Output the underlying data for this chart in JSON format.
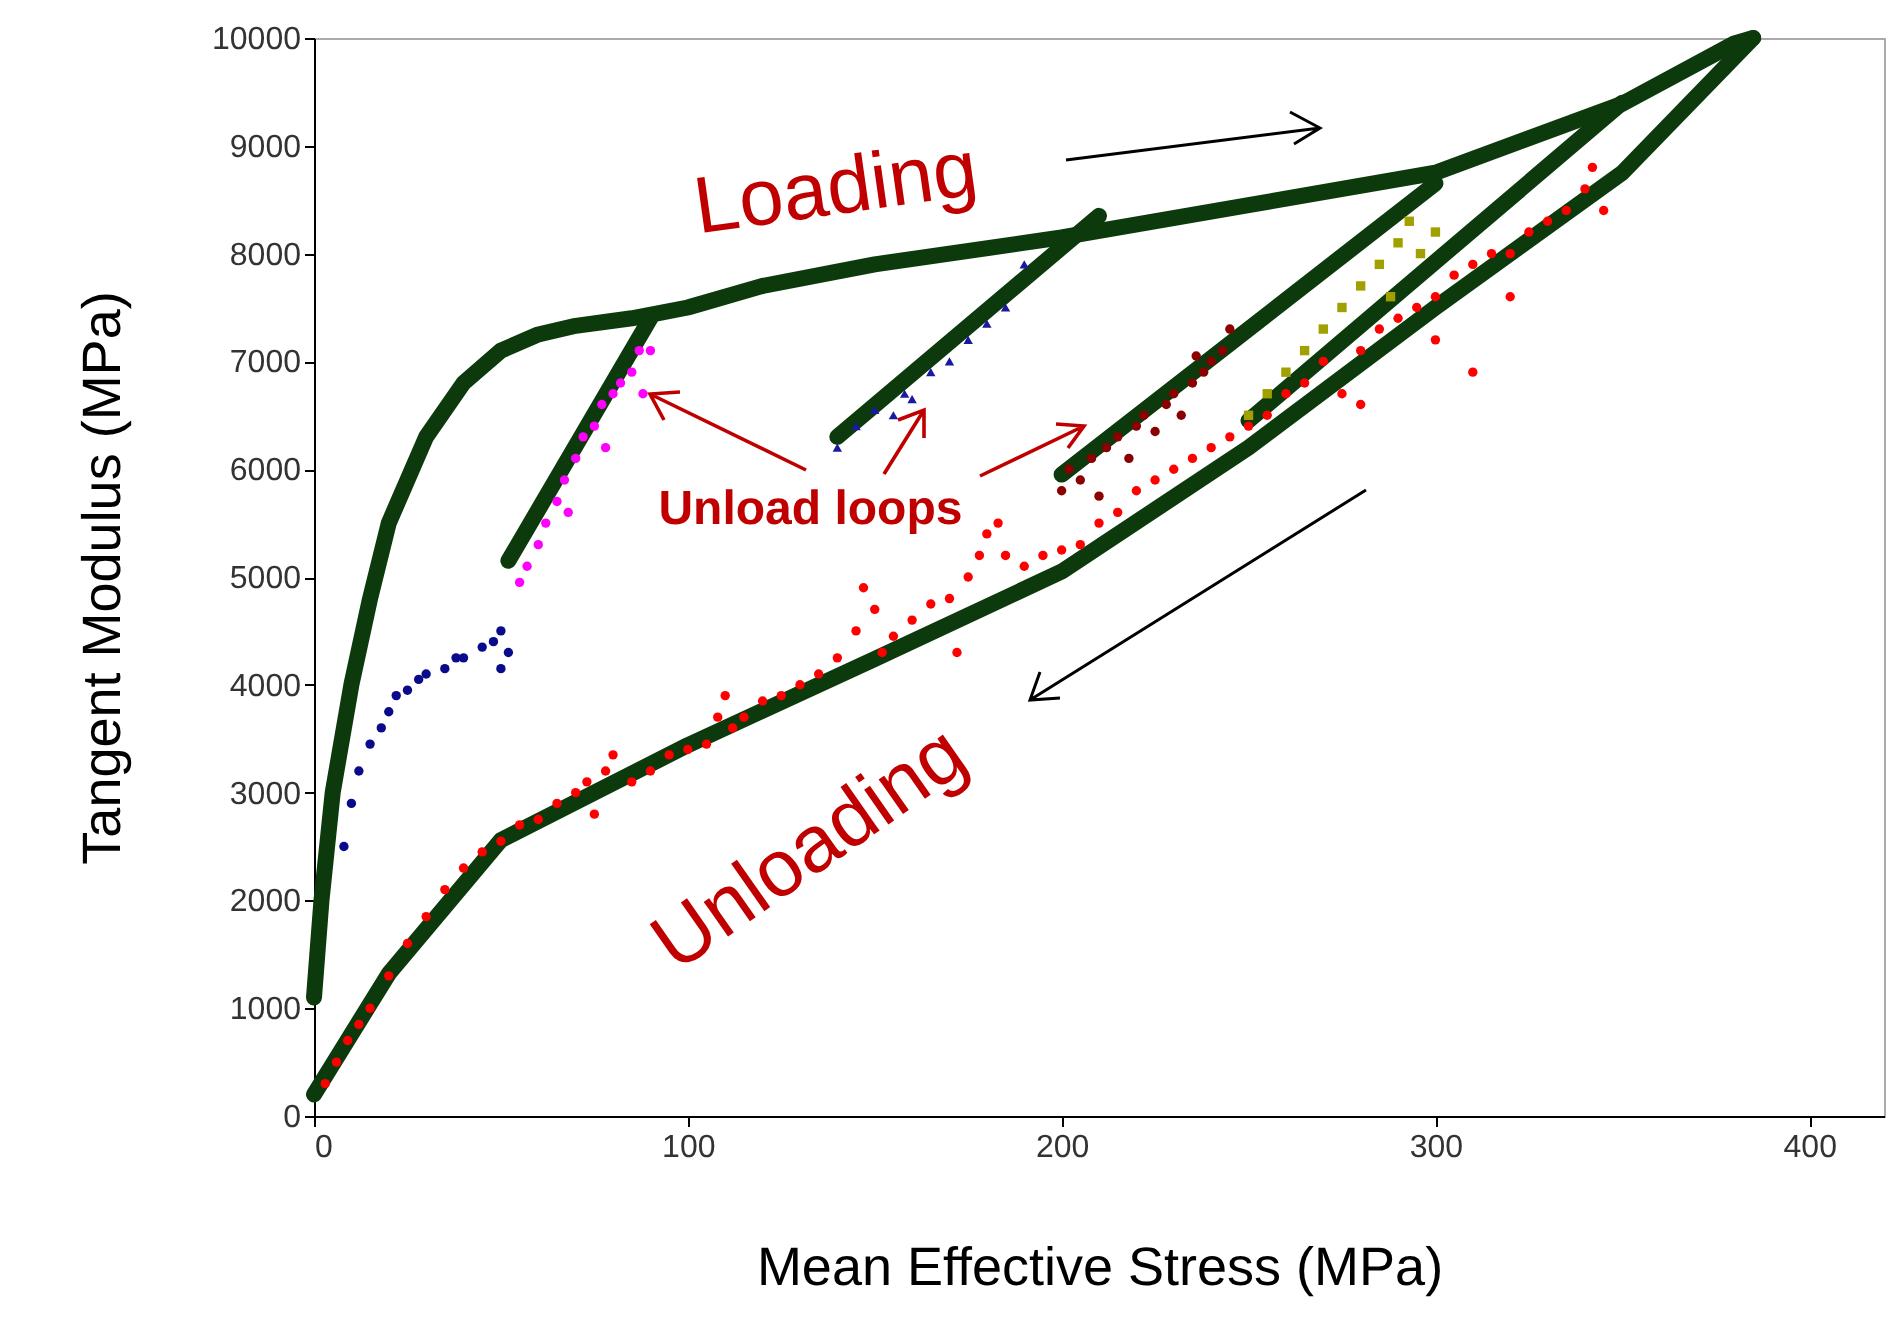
{
  "chart_data": {
    "type": "scatter",
    "xlabel": "Mean Effective Stress (MPa)",
    "ylabel": "Tangent Modulus (MPa)",
    "xlim": [
      0,
      420
    ],
    "ylim": [
      0,
      10000
    ],
    "xticks": [
      0,
      100,
      200,
      300,
      400
    ],
    "yticks": [
      0,
      1000,
      2000,
      3000,
      4000,
      5000,
      6000,
      7000,
      8000,
      9000,
      10000
    ],
    "grid": false,
    "annotations": [
      "Loading",
      {
        "text": "Unload loops",
        "x": 90,
        "y": 6700
      },
      "Unloading"
    ],
    "series": [
      {
        "marker": "circle",
        "color": "#ff0000",
        "x": [
          3,
          6,
          9,
          12,
          15,
          20,
          25,
          30,
          35,
          40,
          45,
          50,
          55,
          60,
          65,
          70,
          73,
          75,
          78,
          80,
          85,
          90,
          95,
          100,
          105,
          108,
          110,
          112,
          115,
          120,
          125,
          130,
          135,
          140,
          145,
          147,
          150,
          152,
          155,
          160,
          165,
          170,
          172,
          175,
          178,
          180,
          183,
          185,
          190,
          195,
          200,
          205,
          210,
          215,
          220,
          225,
          230,
          235,
          240,
          245,
          250,
          255,
          260,
          265,
          270,
          275,
          280,
          285,
          290,
          295,
          300,
          305,
          310,
          315,
          320,
          325,
          330,
          335,
          340,
          342,
          345,
          300,
          280,
          320,
          310
        ],
        "values": [
          300,
          500,
          700,
          850,
          1000,
          1300,
          1600,
          1850,
          2100,
          2300,
          2450,
          2550,
          2700,
          2750,
          2900,
          3000,
          3100,
          2800,
          3200,
          3350,
          3100,
          3200,
          3350,
          3400,
          3450,
          3700,
          3900,
          3600,
          3700,
          3850,
          3900,
          4000,
          4100,
          4250,
          4500,
          4900,
          4700,
          4300,
          4450,
          4600,
          4750,
          4800,
          4300,
          5000,
          5200,
          5400,
          5500,
          5200,
          5100,
          5200,
          5250,
          5300,
          5500,
          5600,
          5800,
          5900,
          6000,
          6100,
          6200,
          6300,
          6400,
          6500,
          6700,
          6800,
          7000,
          6700,
          7100,
          7300,
          7400,
          7500,
          7600,
          7800,
          7900,
          8000,
          8000,
          8200,
          8300,
          8400,
          8600,
          8800,
          8400,
          7200,
          6600,
          7600,
          6900
        ]
      },
      {
        "marker": "circle",
        "color": "#0a0a8c",
        "x": [
          8,
          10,
          12,
          15,
          18,
          20,
          22,
          25,
          28,
          30,
          35,
          38,
          40,
          45,
          48,
          50,
          52,
          50
        ],
        "values": [
          2500,
          2900,
          3200,
          3450,
          3600,
          3750,
          3900,
          3950,
          4050,
          4100,
          4150,
          4250,
          4250,
          4350,
          4400,
          4500,
          4300,
          4150
        ]
      },
      {
        "marker": "circle",
        "color": "#ff00ff",
        "x": [
          55,
          57,
          60,
          62,
          65,
          67,
          70,
          72,
          75,
          77,
          80,
          82,
          85,
          87,
          90,
          88,
          78,
          68
        ],
        "values": [
          4950,
          5100,
          5300,
          5500,
          5700,
          5900,
          6100,
          6300,
          6400,
          6600,
          6700,
          6800,
          6900,
          7100,
          7100,
          6700,
          6200,
          5600
        ]
      },
      {
        "marker": "triangle",
        "color": "#1a1aa0",
        "x": [
          140,
          145,
          150,
          155,
          158,
          160,
          165,
          170,
          175,
          180,
          185,
          190
        ],
        "values": [
          6200,
          6400,
          6550,
          6500,
          6700,
          6650,
          6900,
          7000,
          7200,
          7350,
          7500,
          7900
        ]
      },
      {
        "marker": "circle",
        "color": "#8b0000",
        "x": [
          200,
          202,
          205,
          208,
          210,
          212,
          215,
          218,
          220,
          222,
          225,
          228,
          230,
          232,
          235,
          238,
          240,
          243,
          245,
          236
        ],
        "values": [
          5800,
          6000,
          5900,
          6100,
          5750,
          6200,
          6300,
          6100,
          6400,
          6500,
          6350,
          6600,
          6700,
          6500,
          6800,
          6900,
          7000,
          7100,
          7300,
          7050
        ]
      },
      {
        "marker": "square",
        "color": "#a0a000",
        "x": [
          250,
          255,
          260,
          265,
          270,
          275,
          280,
          285,
          290,
          293,
          296,
          288,
          300
        ],
        "values": [
          6500,
          6700,
          6900,
          7100,
          7300,
          7500,
          7700,
          7900,
          8100,
          8300,
          8000,
          7600,
          8200
        ]
      },
      {
        "type": "line",
        "color": "#0d3a0d",
        "x": [
          0,
          2,
          5,
          10,
          15,
          20,
          30,
          40,
          50,
          60,
          70,
          85,
          100,
          120,
          150,
          200,
          250,
          300,
          350,
          380,
          385
        ],
        "values": [
          1100,
          2000,
          3000,
          4000,
          4800,
          5500,
          6300,
          6800,
          7100,
          7250,
          7330,
          7400,
          7500,
          7700,
          7900,
          8150,
          8450,
          8750,
          9390,
          9950,
          10000
        ]
      },
      {
        "type": "line",
        "color": "#0d3a0d",
        "x": [
          90,
          52
        ],
        "values": [
          7400,
          5150
        ]
      },
      {
        "type": "line",
        "color": "#0d3a0d",
        "x": [
          210,
          140
        ],
        "values": [
          8350,
          6300
        ]
      },
      {
        "type": "line",
        "color": "#0d3a0d",
        "x": [
          300,
          200
        ],
        "values": [
          8650,
          5950
        ]
      },
      {
        "type": "line",
        "color": "#0d3a0d",
        "x": [
          350,
          250
        ],
        "values": [
          9400,
          6450
        ]
      },
      {
        "type": "line",
        "color": "#0d3a0d",
        "x": [
          385,
          350,
          300,
          250,
          200,
          150,
          100,
          50,
          20,
          0
        ],
        "values": [
          10000,
          8750,
          7500,
          6200,
          5050,
          4240,
          3440,
          2560,
          1320,
          200
        ]
      }
    ]
  }
}
